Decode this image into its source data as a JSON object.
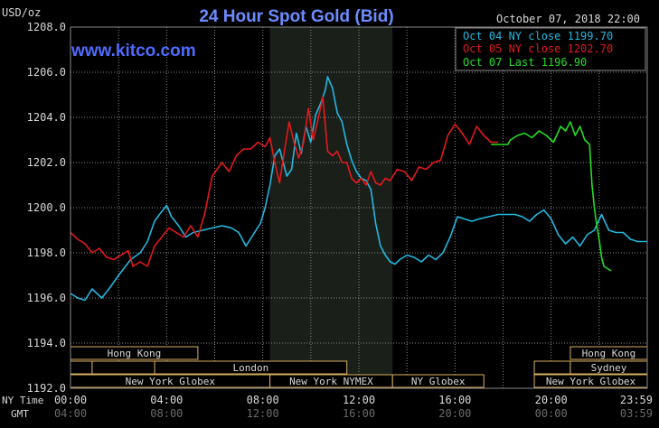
{
  "header": {
    "unit": "USD/oz",
    "title": "24 Hour Spot Gold (Bid)",
    "date": "October 07, 2018 22:00",
    "watermark": "www.kitco.com"
  },
  "colors": {
    "background": "#000000",
    "title": "#6b8cff",
    "watermark": "#4f6bff",
    "text": "#d8d8d8",
    "session_bar_fill": "#000000",
    "session_bar_border": "#d8b060",
    "nymex_shade": "#1a1f1a",
    "series": [
      "#22b8e0",
      "#e31a1a",
      "#22dd22"
    ]
  },
  "legend": {
    "position": "top-right",
    "entries": [
      {
        "text": "Oct 04 NY close 1199.70",
        "color": "#22b8e0"
      },
      {
        "text": "Oct 05 NY close 1202.70",
        "color": "#e31a1a"
      },
      {
        "text": "Oct 07 Last 1196.90",
        "color": "#22dd22"
      }
    ]
  },
  "time_axis": {
    "ny_label": "NY Time",
    "gmt_label": "GMT",
    "ny_ticks": [
      "00:00",
      "04:00",
      "08:00",
      "12:00",
      "16:00",
      "20:00",
      "23:59"
    ],
    "gmt_ticks": [
      "04:00",
      "08:00",
      "12:00",
      "16:00",
      "20:00",
      "00:00",
      "03:59"
    ]
  },
  "sessions": [
    {
      "label": "Hong Kong",
      "row": 0,
      "start": 0,
      "end": 5.3
    },
    {
      "label": "",
      "row": 1,
      "start": 0,
      "end": 0.9
    },
    {
      "label": "",
      "row": 1,
      "start": 0.9,
      "end": 3.5
    },
    {
      "label": "London",
      "row": 1,
      "start": 3.5,
      "end": 11.5
    },
    {
      "label": "New York Globex",
      "row": 2,
      "start": 0,
      "end": 8.3
    },
    {
      "label": "New York NYMEX",
      "row": 2,
      "start": 8.3,
      "end": 13.4
    },
    {
      "label": "NY Globex",
      "row": 2,
      "start": 13.4,
      "end": 17.2
    },
    {
      "label": "Hong Kong",
      "row": 0,
      "start": 20.8,
      "end": 24
    },
    {
      "label": "",
      "row": 1,
      "start": 19.3,
      "end": 20.8
    },
    {
      "label": "Sydney",
      "row": 1,
      "start": 20.8,
      "end": 24
    },
    {
      "label": "New York Globex",
      "row": 2,
      "start": 19.3,
      "end": 24
    }
  ],
  "chart_data": {
    "type": "line",
    "title": "24 Hour Spot Gold (Bid)",
    "ylabel": "USD/oz",
    "xlabel": "NY Time",
    "xlim": [
      0,
      24
    ],
    "ylim": [
      1192,
      1208
    ],
    "y_ticks": [
      "1192.0",
      "1194.0",
      "1196.0",
      "1198.0",
      "1200.0",
      "1202.0",
      "1204.0",
      "1206.0",
      "1208.0"
    ],
    "grid": true,
    "shaded_region": {
      "start": 8.3,
      "end": 13.4
    },
    "series": [
      {
        "name": "Oct 04 NY close 1199.70",
        "points": [
          [
            0,
            1196.2
          ],
          [
            0.3,
            1196.0
          ],
          [
            0.6,
            1195.9
          ],
          [
            0.9,
            1196.4
          ],
          [
            1.3,
            1196.0
          ],
          [
            1.6,
            1196.4
          ],
          [
            2.0,
            1197.0
          ],
          [
            2.5,
            1197.7
          ],
          [
            2.9,
            1198.0
          ],
          [
            3.2,
            1198.5
          ],
          [
            3.5,
            1199.4
          ],
          [
            3.7,
            1199.7
          ],
          [
            4.0,
            1200.1
          ],
          [
            4.2,
            1199.6
          ],
          [
            4.5,
            1199.2
          ],
          [
            4.8,
            1198.7
          ],
          [
            5.1,
            1198.9
          ],
          [
            5.5,
            1199.0
          ],
          [
            5.9,
            1199.1
          ],
          [
            6.3,
            1199.2
          ],
          [
            6.7,
            1199.1
          ],
          [
            7.0,
            1198.9
          ],
          [
            7.3,
            1198.3
          ],
          [
            7.6,
            1198.8
          ],
          [
            7.9,
            1199.3
          ],
          [
            8.1,
            1200.0
          ],
          [
            8.3,
            1201.0
          ],
          [
            8.5,
            1202.3
          ],
          [
            8.7,
            1202.6
          ],
          [
            9.0,
            1201.4
          ],
          [
            9.2,
            1201.7
          ],
          [
            9.4,
            1203.3
          ],
          [
            9.6,
            1202.4
          ],
          [
            9.8,
            1203.6
          ],
          [
            10.0,
            1202.9
          ],
          [
            10.2,
            1204.1
          ],
          [
            10.4,
            1204.6
          ],
          [
            10.6,
            1205.2
          ],
          [
            10.7,
            1205.8
          ],
          [
            10.9,
            1205.3
          ],
          [
            11.1,
            1204.2
          ],
          [
            11.3,
            1203.8
          ],
          [
            11.5,
            1202.8
          ],
          [
            11.7,
            1202.1
          ],
          [
            11.9,
            1201.6
          ],
          [
            12.1,
            1201.3
          ],
          [
            12.3,
            1201.2
          ],
          [
            12.5,
            1200.8
          ],
          [
            12.7,
            1199.3
          ],
          [
            12.9,
            1198.3
          ],
          [
            13.1,
            1197.9
          ],
          [
            13.3,
            1197.6
          ],
          [
            13.5,
            1197.5
          ],
          [
            13.7,
            1197.7
          ],
          [
            14.0,
            1197.9
          ],
          [
            14.3,
            1197.8
          ],
          [
            14.6,
            1197.6
          ],
          [
            14.9,
            1197.9
          ],
          [
            15.2,
            1197.7
          ],
          [
            15.5,
            1198.0
          ],
          [
            15.8,
            1198.7
          ],
          [
            16.1,
            1199.6
          ],
          [
            16.4,
            1199.5
          ],
          [
            16.7,
            1199.4
          ],
          [
            17.0,
            1199.5
          ],
          [
            17.4,
            1199.6
          ],
          [
            17.8,
            1199.7
          ],
          [
            18.2,
            1199.7
          ],
          [
            18.5,
            1199.7
          ],
          [
            18.8,
            1199.6
          ],
          [
            19.1,
            1199.4
          ],
          [
            19.4,
            1199.7
          ],
          [
            19.7,
            1199.9
          ],
          [
            20.0,
            1199.5
          ],
          [
            20.3,
            1198.8
          ],
          [
            20.6,
            1198.4
          ],
          [
            20.9,
            1198.7
          ],
          [
            21.2,
            1198.3
          ],
          [
            21.5,
            1198.8
          ],
          [
            21.8,
            1199.0
          ],
          [
            22.1,
            1199.7
          ],
          [
            22.4,
            1199.0
          ],
          [
            22.7,
            1198.9
          ],
          [
            23.0,
            1198.9
          ],
          [
            23.3,
            1198.6
          ],
          [
            23.6,
            1198.5
          ],
          [
            23.99,
            1198.5
          ]
        ]
      },
      {
        "name": "Oct 05 NY close 1202.70",
        "points": [
          [
            0,
            1198.9
          ],
          [
            0.3,
            1198.6
          ],
          [
            0.6,
            1198.4
          ],
          [
            0.9,
            1198.0
          ],
          [
            1.2,
            1198.2
          ],
          [
            1.5,
            1197.8
          ],
          [
            1.8,
            1197.7
          ],
          [
            2.1,
            1197.9
          ],
          [
            2.4,
            1198.1
          ],
          [
            2.6,
            1197.4
          ],
          [
            2.9,
            1197.6
          ],
          [
            3.2,
            1197.4
          ],
          [
            3.5,
            1198.3
          ],
          [
            3.8,
            1198.7
          ],
          [
            4.1,
            1199.1
          ],
          [
            4.4,
            1198.9
          ],
          [
            4.7,
            1198.7
          ],
          [
            5.0,
            1199.2
          ],
          [
            5.3,
            1198.7
          ],
          [
            5.6,
            1199.8
          ],
          [
            5.9,
            1201.4
          ],
          [
            6.3,
            1202.0
          ],
          [
            6.6,
            1201.6
          ],
          [
            6.9,
            1202.3
          ],
          [
            7.2,
            1202.6
          ],
          [
            7.5,
            1202.6
          ],
          [
            7.8,
            1202.9
          ],
          [
            8.1,
            1202.7
          ],
          [
            8.3,
            1203.1
          ],
          [
            8.5,
            1202.0
          ],
          [
            8.7,
            1201.1
          ],
          [
            8.9,
            1202.5
          ],
          [
            9.1,
            1203.8
          ],
          [
            9.3,
            1202.9
          ],
          [
            9.5,
            1202.2
          ],
          [
            9.7,
            1202.9
          ],
          [
            9.9,
            1204.4
          ],
          [
            10.1,
            1203.0
          ],
          [
            10.3,
            1203.9
          ],
          [
            10.5,
            1204.9
          ],
          [
            10.7,
            1202.5
          ],
          [
            10.9,
            1202.3
          ],
          [
            11.1,
            1202.5
          ],
          [
            11.3,
            1202.0
          ],
          [
            11.5,
            1202.0
          ],
          [
            11.7,
            1201.3
          ],
          [
            11.9,
            1201.1
          ],
          [
            12.1,
            1201.3
          ],
          [
            12.3,
            1201.0
          ],
          [
            12.5,
            1201.6
          ],
          [
            12.7,
            1201.1
          ],
          [
            12.9,
            1201.0
          ],
          [
            13.1,
            1201.3
          ],
          [
            13.3,
            1201.2
          ],
          [
            13.6,
            1201.7
          ],
          [
            13.9,
            1201.6
          ],
          [
            14.2,
            1201.2
          ],
          [
            14.5,
            1201.8
          ],
          [
            14.8,
            1201.7
          ],
          [
            15.1,
            1202.0
          ],
          [
            15.4,
            1202.1
          ],
          [
            15.7,
            1203.2
          ],
          [
            16.0,
            1203.7
          ],
          [
            16.3,
            1203.3
          ],
          [
            16.6,
            1202.8
          ],
          [
            16.9,
            1203.6
          ],
          [
            17.2,
            1203.2
          ],
          [
            17.5,
            1202.9
          ],
          [
            17.8,
            1202.9
          ]
        ]
      },
      {
        "name": "Oct 07 Last 1196.90",
        "points": [
          [
            17.5,
            1202.8
          ],
          [
            18.0,
            1202.8
          ],
          [
            18.2,
            1202.8
          ],
          [
            18.3,
            1203.0
          ],
          [
            18.6,
            1203.2
          ],
          [
            18.9,
            1203.3
          ],
          [
            19.2,
            1203.1
          ],
          [
            19.5,
            1203.4
          ],
          [
            19.8,
            1203.2
          ],
          [
            20.1,
            1202.9
          ],
          [
            20.4,
            1203.6
          ],
          [
            20.6,
            1203.4
          ],
          [
            20.8,
            1203.8
          ],
          [
            21.0,
            1203.2
          ],
          [
            21.2,
            1203.6
          ],
          [
            21.4,
            1203.0
          ],
          [
            21.6,
            1202.8
          ],
          [
            21.7,
            1201.0
          ],
          [
            21.8,
            1200.0
          ],
          [
            21.9,
            1199.2
          ],
          [
            22.0,
            1198.6
          ],
          [
            22.1,
            1197.8
          ],
          [
            22.2,
            1197.4
          ],
          [
            22.35,
            1197.3
          ],
          [
            22.5,
            1197.2
          ]
        ]
      }
    ]
  }
}
